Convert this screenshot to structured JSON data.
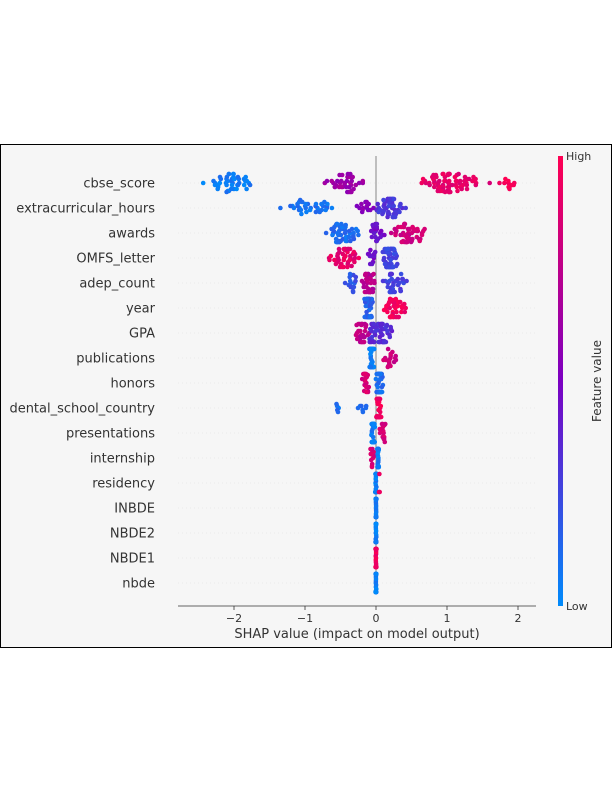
{
  "chart_data": {
    "type": "scatter",
    "subtype": "shap-beeswarm",
    "title": "",
    "xlabel": "SHAP value (impact on model output)",
    "ylabel": "",
    "xlim": [
      -2.8,
      2.25
    ],
    "xticks": [
      -2,
      -1,
      0,
      1,
      2
    ],
    "xtick_labels": [
      "−2",
      "−1",
      "0",
      "1",
      "2"
    ],
    "features": [
      "cbse_score",
      "extracurricular_hours",
      "awards",
      "OMFS_letter",
      "adep_count",
      "year",
      "GPA",
      "publications",
      "honors",
      "dental_school_country",
      "presentations",
      "internship",
      "residency",
      "INBDE",
      "NBDE2",
      "NBDE1",
      "nbde"
    ],
    "feature_distributions": [
      {
        "feature": "cbse_score",
        "min": -2.55,
        "max": 2.0,
        "groups": [
          {
            "center": -2.05,
            "spread": 0.5,
            "count": 45,
            "color_value": 0.05
          },
          {
            "center": -0.45,
            "spread": 0.4,
            "count": 40,
            "color_value": 0.62
          },
          {
            "center": 1.05,
            "spread": 0.6,
            "count": 75,
            "color_value": 0.9
          },
          {
            "center": 1.85,
            "spread": 0.15,
            "count": 12,
            "color_value": 0.98
          }
        ]
      },
      {
        "feature": "extracurricular_hours",
        "min": -1.5,
        "max": 0.6,
        "groups": [
          {
            "center": -0.9,
            "spread": 0.5,
            "count": 35,
            "color_value": 0.1
          },
          {
            "center": -0.15,
            "spread": 0.15,
            "count": 14,
            "color_value": 0.55
          },
          {
            "center": 0.2,
            "spread": 0.25,
            "count": 50,
            "color_value": 0.3
          }
        ]
      },
      {
        "feature": "awards",
        "min": -0.85,
        "max": 0.97,
        "groups": [
          {
            "center": -0.45,
            "spread": 0.3,
            "count": 50,
            "color_value": 0.12
          },
          {
            "center": 0.0,
            "spread": 0.15,
            "count": 20,
            "color_value": 0.45
          },
          {
            "center": 0.45,
            "spread": 0.35,
            "count": 50,
            "color_value": 0.82
          }
        ]
      },
      {
        "feature": "OMFS_letter",
        "min": -0.85,
        "max": 0.45,
        "groups": [
          {
            "center": -0.45,
            "spread": 0.3,
            "count": 45,
            "color_value": 0.9
          },
          {
            "center": -0.05,
            "spread": 0.1,
            "count": 12,
            "color_value": 0.45
          },
          {
            "center": 0.2,
            "spread": 0.15,
            "count": 55,
            "color_value": 0.25
          }
        ]
      },
      {
        "feature": "adep_count",
        "min": -0.55,
        "max": 0.52,
        "groups": [
          {
            "center": -0.35,
            "spread": 0.15,
            "count": 15,
            "color_value": 0.2
          },
          {
            "center": -0.1,
            "spread": 0.12,
            "count": 35,
            "color_value": 0.72
          },
          {
            "center": 0.25,
            "spread": 0.25,
            "count": 35,
            "color_value": 0.28
          }
        ]
      },
      {
        "feature": "year",
        "min": -0.3,
        "max": 0.52,
        "groups": [
          {
            "center": -0.12,
            "spread": 0.1,
            "count": 45,
            "color_value": 0.15
          },
          {
            "center": 0.25,
            "spread": 0.22,
            "count": 40,
            "color_value": 0.95
          }
        ]
      },
      {
        "feature": "GPA",
        "min": -0.42,
        "max": 0.38,
        "groups": [
          {
            "center": -0.22,
            "spread": 0.15,
            "count": 30,
            "color_value": 0.75
          },
          {
            "center": 0.05,
            "spread": 0.25,
            "count": 55,
            "color_value": 0.35
          }
        ]
      },
      {
        "feature": "publications",
        "min": -0.12,
        "max": 0.4,
        "groups": [
          {
            "center": -0.06,
            "spread": 0.05,
            "count": 60,
            "color_value": 0.05
          },
          {
            "center": 0.2,
            "spread": 0.15,
            "count": 18,
            "color_value": 0.8
          }
        ]
      },
      {
        "feature": "honors",
        "min": -0.25,
        "max": 0.15,
        "groups": [
          {
            "center": -0.15,
            "spread": 0.08,
            "count": 20,
            "color_value": 0.85
          },
          {
            "center": 0.05,
            "spread": 0.07,
            "count": 45,
            "color_value": 0.1
          }
        ]
      },
      {
        "feature": "dental_school_country",
        "min": -0.62,
        "max": 0.13,
        "groups": [
          {
            "center": -0.55,
            "spread": 0.05,
            "count": 5,
            "color_value": 0.1
          },
          {
            "center": -0.18,
            "spread": 0.12,
            "count": 7,
            "color_value": 0.1
          },
          {
            "center": 0.04,
            "spread": 0.05,
            "count": 55,
            "color_value": 0.95
          }
        ]
      },
      {
        "feature": "presentations",
        "min": -0.07,
        "max": 0.18,
        "groups": [
          {
            "center": -0.04,
            "spread": 0.03,
            "count": 60,
            "color_value": 0.05
          },
          {
            "center": 0.1,
            "spread": 0.07,
            "count": 15,
            "color_value": 0.85
          }
        ]
      },
      {
        "feature": "internship",
        "min": -0.1,
        "max": 0.05,
        "groups": [
          {
            "center": -0.06,
            "spread": 0.04,
            "count": 12,
            "color_value": 0.85
          },
          {
            "center": 0.03,
            "spread": 0.015,
            "count": 55,
            "color_value": 0.05
          }
        ]
      },
      {
        "feature": "residency",
        "min": -0.02,
        "max": 0.06,
        "groups": [
          {
            "center": 0.0,
            "spread": 0.02,
            "count": 60,
            "color_value": 0.05
          },
          {
            "center": 0.05,
            "spread": 0.01,
            "count": 3,
            "color_value": 0.95
          }
        ]
      },
      {
        "feature": "INBDE",
        "min": -0.01,
        "max": 0.01,
        "groups": [
          {
            "center": 0.0,
            "spread": 0.008,
            "count": 60,
            "color_value": 0.05
          }
        ]
      },
      {
        "feature": "NBDE2",
        "min": -0.01,
        "max": 0.01,
        "groups": [
          {
            "center": 0.0,
            "spread": 0.008,
            "count": 60,
            "color_value": 0.05
          }
        ]
      },
      {
        "feature": "NBDE1",
        "min": -0.01,
        "max": 0.01,
        "groups": [
          {
            "center": 0.0,
            "spread": 0.008,
            "count": 60,
            "color_value": 0.95
          }
        ]
      },
      {
        "feature": "nbde",
        "min": -0.01,
        "max": 0.01,
        "groups": [
          {
            "center": 0.0,
            "spread": 0.008,
            "count": 60,
            "color_value": 0.05
          }
        ]
      }
    ],
    "colorbar": {
      "label": "Feature value",
      "high_label": "High",
      "low_label": "Low",
      "low_color": "#008bfb",
      "mid_color": "#7c00c2",
      "high_color": "#ff0052"
    },
    "grid": false,
    "legend": "colorbar-right"
  }
}
